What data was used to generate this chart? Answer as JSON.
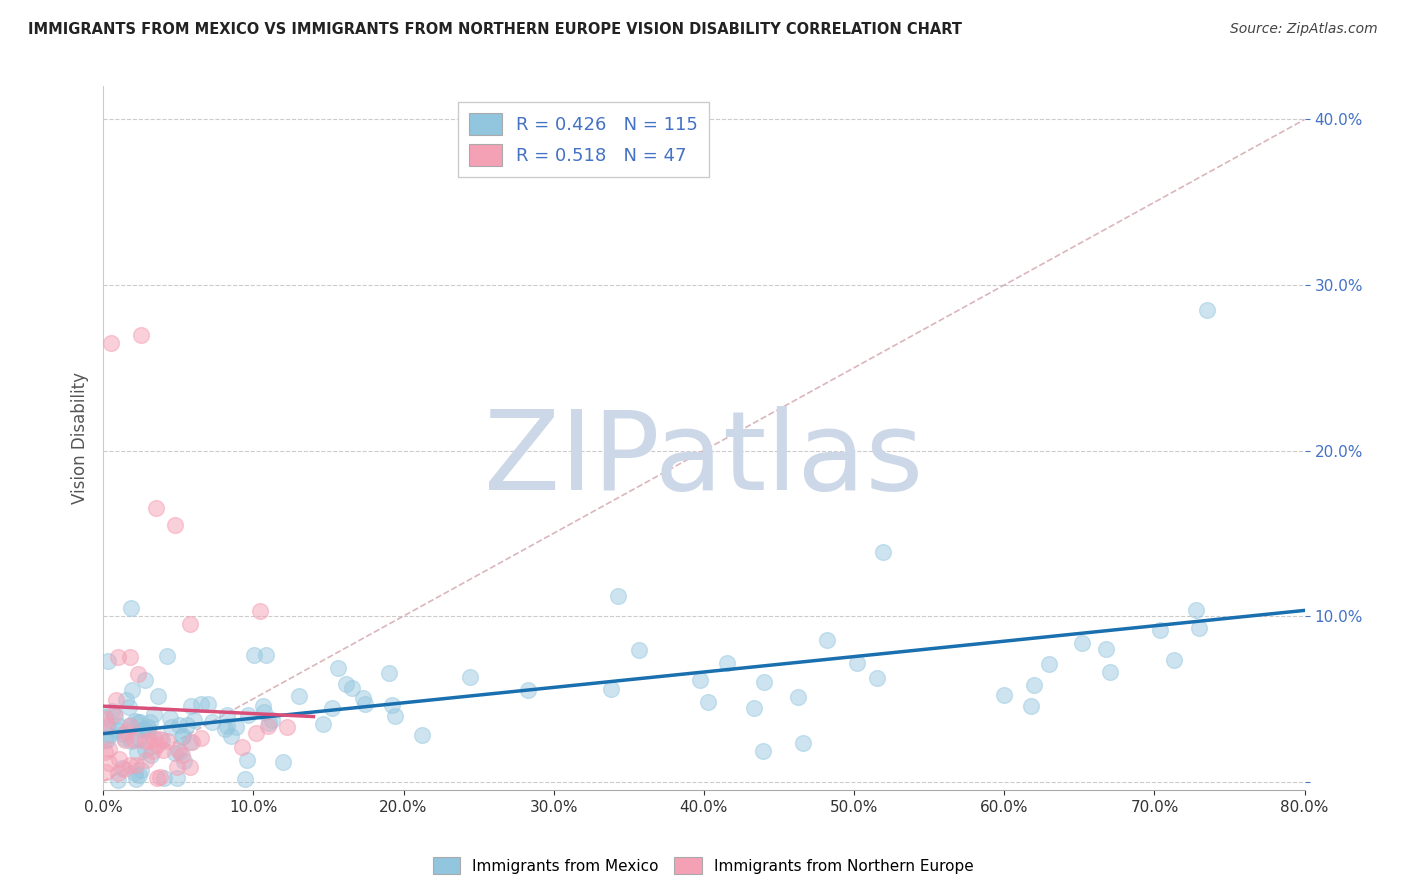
{
  "title": "IMMIGRANTS FROM MEXICO VS IMMIGRANTS FROM NORTHERN EUROPE VISION DISABILITY CORRELATION CHART",
  "source": "Source: ZipAtlas.com",
  "ylabel": "Vision Disability",
  "legend_blue_label": "Immigrants from Mexico",
  "legend_pink_label": "Immigrants from Northern Europe",
  "R_blue": 0.426,
  "N_blue": 115,
  "R_pink": 0.518,
  "N_pink": 47,
  "blue_color": "#92c5de",
  "pink_color": "#f4a0b5",
  "trend_blue_color": "#1a6faf",
  "trend_pink_color": "#d94f7a",
  "dashed_line_color": "#d4aab0",
  "watermark_color": "#ccd8e8",
  "watermark_text": "ZIPatlas",
  "xlim": [
    0.0,
    0.8
  ],
  "ylim": [
    -0.005,
    0.42
  ],
  "grid_color": "#cccccc",
  "background_color": "#ffffff",
  "legend_R_color": "#4472c4",
  "legend_N_color": "#4472c4"
}
